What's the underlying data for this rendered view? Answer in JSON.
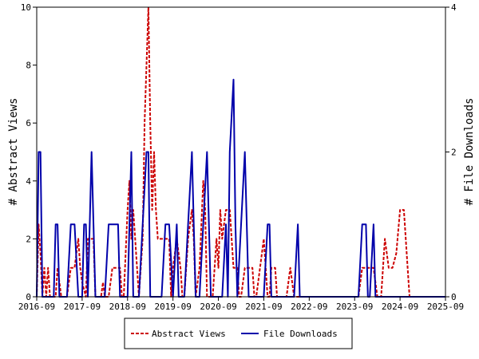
{
  "chart_data": {
    "type": "line",
    "xlabel": "",
    "ylabel_left": "# Abstract Views",
    "ylabel_right": "# File Downloads",
    "x_tick_labels": [
      "2016-09",
      "2017-09",
      "2018-09",
      "2019-09",
      "2020-09",
      "2021-09",
      "2022-09",
      "2023-09",
      "2024-09",
      "2025-09"
    ],
    "y_left_ticks": [
      "0",
      "2",
      "4",
      "6",
      "8",
      "10"
    ],
    "y_right_ticks": [
      "0",
      "2",
      "4"
    ],
    "ylim_left": [
      0,
      10
    ],
    "ylim_right": [
      0,
      4
    ],
    "x_range_months": [
      0,
      108
    ],
    "grid": false,
    "legend_position": "bottom-center",
    "series": [
      {
        "name": "Abstract Views",
        "axis": "left",
        "color": "#cc0000",
        "style": "dashed",
        "points": [
          [
            0,
            0
          ],
          [
            0.5,
            2.5
          ],
          [
            1,
            1.5
          ],
          [
            1.5,
            0
          ],
          [
            2,
            1
          ],
          [
            2.5,
            0
          ],
          [
            3,
            1
          ],
          [
            3.5,
            0
          ],
          [
            4,
            0
          ],
          [
            5,
            0
          ],
          [
            5.5,
            1
          ],
          [
            6,
            0.5
          ],
          [
            6.5,
            0
          ],
          [
            7,
            0
          ],
          [
            8,
            0
          ],
          [
            9,
            1
          ],
          [
            10,
            1
          ],
          [
            11,
            2
          ],
          [
            11.5,
            1
          ],
          [
            12,
            0.5
          ],
          [
            13,
            0
          ],
          [
            13.5,
            2
          ],
          [
            14,
            2
          ],
          [
            15,
            2
          ],
          [
            15.5,
            0
          ],
          [
            16,
            0
          ],
          [
            17,
            0
          ],
          [
            17.5,
            0.5
          ],
          [
            18,
            0
          ],
          [
            19,
            0
          ],
          [
            20,
            1
          ],
          [
            20.5,
            1
          ],
          [
            21,
            1
          ],
          [
            22,
            1
          ],
          [
            22.5,
            0
          ],
          [
            23,
            0
          ],
          [
            24,
            3
          ],
          [
            24.5,
            4
          ],
          [
            25,
            2
          ],
          [
            25.5,
            3
          ],
          [
            26,
            2
          ],
          [
            27,
            0
          ],
          [
            28,
            2
          ],
          [
            28.5,
            6
          ],
          [
            29,
            8
          ],
          [
            29.5,
            10
          ],
          [
            30,
            6
          ],
          [
            30.5,
            3
          ],
          [
            31,
            5
          ],
          [
            31.5,
            3
          ],
          [
            32,
            2
          ],
          [
            33,
            2
          ],
          [
            34,
            2
          ],
          [
            35,
            2
          ],
          [
            35.5,
            0
          ],
          [
            36,
            1
          ],
          [
            37,
            2
          ],
          [
            38,
            1
          ],
          [
            38.5,
            0
          ],
          [
            39,
            0
          ],
          [
            40,
            2
          ],
          [
            41,
            3
          ],
          [
            41.5,
            2
          ],
          [
            42,
            0
          ],
          [
            43,
            1
          ],
          [
            44,
            4
          ],
          [
            44.5,
            3
          ],
          [
            45,
            0
          ],
          [
            46,
            0
          ],
          [
            46.5,
            0
          ],
          [
            47,
            1
          ],
          [
            47.5,
            2
          ],
          [
            48,
            1
          ],
          [
            48.5,
            3
          ],
          [
            49,
            2
          ],
          [
            50,
            3
          ],
          [
            50.5,
            3
          ],
          [
            51,
            3
          ],
          [
            52,
            1
          ],
          [
            53,
            1
          ],
          [
            53.5,
            0
          ],
          [
            54,
            0
          ],
          [
            55,
            1
          ],
          [
            56,
            1
          ],
          [
            57,
            1
          ],
          [
            57.5,
            0
          ],
          [
            58,
            0
          ],
          [
            59,
            1
          ],
          [
            60,
            2
          ],
          [
            60.5,
            1
          ],
          [
            61,
            0
          ],
          [
            61.5,
            0
          ],
          [
            62,
            1
          ],
          [
            63,
            1
          ],
          [
            63.5,
            0
          ],
          [
            64,
            0
          ],
          [
            65,
            0
          ],
          [
            66,
            0
          ],
          [
            67,
            1
          ],
          [
            68,
            0
          ],
          [
            69,
            0
          ],
          [
            70,
            0
          ],
          [
            75,
            0
          ],
          [
            80,
            0
          ],
          [
            85,
            0
          ],
          [
            86,
            1
          ],
          [
            87,
            1
          ],
          [
            88,
            1
          ],
          [
            89,
            1
          ],
          [
            90,
            0
          ],
          [
            91,
            0
          ],
          [
            92,
            2
          ],
          [
            93,
            1
          ],
          [
            94,
            1
          ],
          [
            95,
            1.5
          ],
          [
            96,
            3
          ],
          [
            97,
            3
          ],
          [
            98,
            1
          ],
          [
            98.5,
            0
          ],
          [
            100,
            0
          ],
          [
            102,
            0
          ],
          [
            104,
            0
          ],
          [
            106,
            0
          ],
          [
            108,
            0
          ]
        ]
      },
      {
        "name": "File Downloads",
        "axis": "right",
        "color": "#0000aa",
        "style": "solid",
        "points": [
          [
            0,
            0
          ],
          [
            0.5,
            2
          ],
          [
            1,
            2
          ],
          [
            1.5,
            0
          ],
          [
            2,
            0
          ],
          [
            3,
            0
          ],
          [
            4,
            0
          ],
          [
            4.5,
            0
          ],
          [
            5,
            1
          ],
          [
            5.5,
            1
          ],
          [
            6,
            0
          ],
          [
            7,
            0
          ],
          [
            8,
            0
          ],
          [
            9,
            1
          ],
          [
            10,
            1
          ],
          [
            11,
            0
          ],
          [
            12,
            0
          ],
          [
            12.5,
            1
          ],
          [
            13,
            1
          ],
          [
            13.5,
            0
          ],
          [
            14,
            1
          ],
          [
            14.5,
            2
          ],
          [
            15,
            1
          ],
          [
            15.5,
            0
          ],
          [
            16,
            0
          ],
          [
            17,
            0
          ],
          [
            18,
            0
          ],
          [
            19,
            1
          ],
          [
            20,
            1
          ],
          [
            21,
            1
          ],
          [
            21.5,
            1
          ],
          [
            22,
            0
          ],
          [
            23,
            0
          ],
          [
            24,
            0
          ],
          [
            25,
            2
          ],
          [
            25.5,
            0
          ],
          [
            26,
            0
          ],
          [
            27,
            0
          ],
          [
            28,
            1
          ],
          [
            29,
            2
          ],
          [
            29.5,
            2
          ],
          [
            30,
            0
          ],
          [
            31,
            0
          ],
          [
            32,
            0
          ],
          [
            33,
            0
          ],
          [
            34,
            1
          ],
          [
            35,
            1
          ],
          [
            36,
            0
          ],
          [
            37,
            1
          ],
          [
            37.5,
            0
          ],
          [
            38,
            0
          ],
          [
            39,
            0
          ],
          [
            40,
            1
          ],
          [
            41,
            2
          ],
          [
            41.5,
            1
          ],
          [
            42,
            0
          ],
          [
            43,
            0
          ],
          [
            44,
            1
          ],
          [
            45,
            2
          ],
          [
            45.5,
            1
          ],
          [
            46,
            0
          ],
          [
            47,
            0
          ],
          [
            48,
            0
          ],
          [
            49,
            0
          ],
          [
            50,
            1
          ],
          [
            50.5,
            0
          ],
          [
            51,
            2
          ],
          [
            52,
            3
          ],
          [
            52.5,
            1
          ],
          [
            53,
            0
          ],
          [
            54,
            1
          ],
          [
            55,
            2
          ],
          [
            55.5,
            1
          ],
          [
            56,
            0
          ],
          [
            57,
            0
          ],
          [
            58,
            0
          ],
          [
            59,
            0
          ],
          [
            60,
            0
          ],
          [
            61,
            1
          ],
          [
            61.5,
            1
          ],
          [
            62,
            0
          ],
          [
            63,
            0
          ],
          [
            64,
            0
          ],
          [
            65,
            0
          ],
          [
            66,
            0
          ],
          [
            67,
            0
          ],
          [
            68,
            0
          ],
          [
            69,
            1
          ],
          [
            69.5,
            0
          ],
          [
            70,
            0
          ],
          [
            75,
            0
          ],
          [
            80,
            0
          ],
          [
            85,
            0
          ],
          [
            86,
            1
          ],
          [
            87,
            1
          ],
          [
            87.5,
            0
          ],
          [
            88,
            0
          ],
          [
            89,
            1
          ],
          [
            89.5,
            0
          ],
          [
            90,
            0
          ],
          [
            95,
            0
          ],
          [
            100,
            0
          ],
          [
            104,
            0
          ],
          [
            106,
            0
          ],
          [
            108,
            0
          ]
        ]
      }
    ]
  }
}
